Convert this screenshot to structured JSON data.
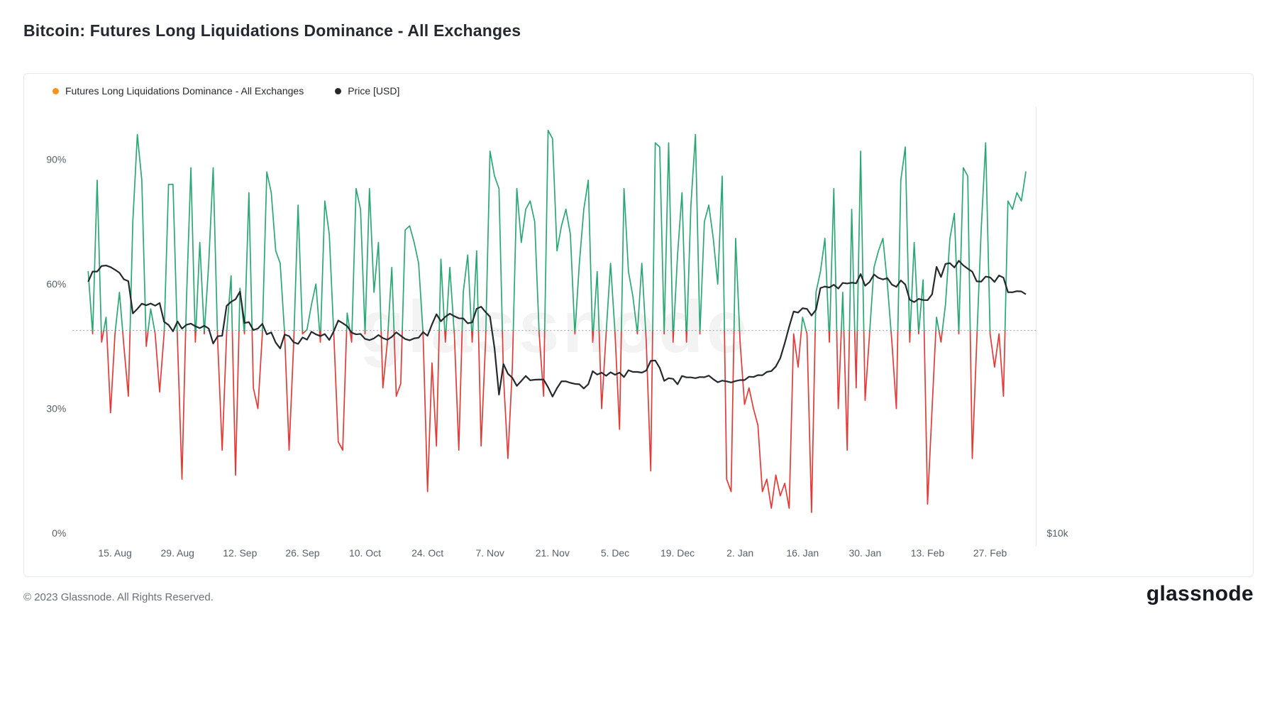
{
  "page": {
    "title": "Bitcoin: Futures Long Liquidations Dominance - All Exchanges",
    "watermark": "glassnode",
    "footer_copyright": "© 2023 Glassnode. All Rights Reserved.",
    "brand_logo": "glassnode"
  },
  "legend": [
    {
      "label": "Futures Long Liquidations Dominance - All Exchanges",
      "color": "#f7931a"
    },
    {
      "label": "Price [USD]",
      "color": "#24292e"
    }
  ],
  "chart_data": {
    "type": "line",
    "title": "Bitcoin: Futures Long Liquidations Dominance - All Exchanges",
    "x_tick_labels": [
      "15. Aug",
      "29. Aug",
      "12. Sep",
      "26. Sep",
      "10. Oct",
      "24. Oct",
      "7. Nov",
      "21. Nov",
      "5. Dec",
      "19. Dec",
      "2. Jan",
      "16. Jan",
      "30. Jan",
      "13. Feb",
      "27. Feb"
    ],
    "x_tick_indices": [
      6,
      20,
      34,
      48,
      62,
      76,
      90,
      104,
      118,
      132,
      146,
      160,
      174,
      188,
      202
    ],
    "y_axis": {
      "ticks": [
        "0%",
        "30%",
        "60%",
        "90%"
      ],
      "tick_values": [
        0,
        30,
        60,
        90
      ],
      "max_percent": 100,
      "grid": false
    },
    "right_axis": {
      "tick_label": "$10k",
      "scale": "log",
      "min": 10000,
      "max_at_top": 40000
    },
    "threshold_percent": 48.8,
    "colors": {
      "above_threshold": "#2aa874",
      "below_threshold": "#e53935",
      "price": "#24292e",
      "threshold": "#9aa0a6",
      "legend_dominance_dot": "#f7931a",
      "axis_text": "#57606a",
      "plot_border": "#e1e4e8"
    },
    "series": [
      {
        "name": "Futures Long Liquidations Dominance - All Exchanges",
        "unit": "%",
        "values": [
          63,
          48,
          85,
          46,
          52,
          29,
          48,
          58,
          45,
          33,
          75,
          96,
          85,
          45,
          54,
          48,
          34,
          48,
          84,
          84,
          46,
          13,
          56,
          88,
          46,
          70,
          48,
          65,
          88,
          46,
          20,
          48,
          62,
          14,
          59,
          48,
          82,
          35,
          30,
          48,
          87,
          82,
          68,
          65,
          48,
          20,
          45,
          79,
          48,
          49,
          55,
          60,
          46,
          80,
          72,
          48,
          22,
          20,
          53,
          46,
          83,
          78,
          48,
          83,
          58,
          70,
          35,
          46,
          64,
          33,
          36,
          73,
          74,
          70,
          65,
          48,
          10,
          41,
          21,
          66,
          46,
          64,
          48,
          20,
          58,
          67,
          46,
          68,
          21,
          46,
          92,
          86,
          83,
          38,
          18,
          40,
          83,
          70,
          78,
          80,
          75,
          48,
          33,
          97,
          95,
          68,
          74,
          78,
          72,
          48,
          65,
          78,
          85,
          46,
          63,
          30,
          48,
          65,
          48,
          25,
          83,
          63,
          57,
          48,
          65,
          46,
          15,
          94,
          93,
          48,
          94,
          46,
          67,
          82,
          46,
          79,
          96,
          48,
          75,
          79,
          71,
          60,
          86,
          13,
          10,
          71,
          46,
          31,
          35,
          30,
          26,
          10,
          13,
          6,
          14,
          9,
          12,
          6,
          48,
          40,
          52,
          48,
          5,
          58,
          63,
          71,
          46,
          83,
          30,
          58,
          20,
          78,
          35,
          92,
          32,
          48,
          64,
          68,
          71,
          60,
          46,
          30,
          85,
          93,
          46,
          70,
          48,
          61,
          7,
          30,
          52,
          46,
          55,
          71,
          77,
          48,
          88,
          86,
          18,
          46,
          73,
          94,
          48,
          40,
          48,
          33,
          80,
          78,
          82,
          80,
          87
        ]
      },
      {
        "name": "Price [USD]",
        "unit": "USD",
        "values": [
          23150,
          23950,
          23950,
          24400,
          24440,
          24310,
          24100,
          23850,
          23340,
          23190,
          20830,
          21140,
          21520,
          21400,
          21530,
          21370,
          21560,
          20250,
          20040,
          19620,
          20280,
          19790,
          20050,
          20130,
          19950,
          19830,
          19990,
          19800,
          18840,
          19300,
          19330,
          21360,
          21650,
          21830,
          22400,
          20170,
          20230,
          19700,
          19800,
          20110,
          19420,
          19550,
          18890,
          18530,
          19410,
          19300,
          18920,
          18810,
          19220,
          19080,
          19590,
          19420,
          19310,
          19440,
          19060,
          19630,
          20340,
          20160,
          19960,
          19530,
          19420,
          19450,
          19130,
          19050,
          19160,
          19380,
          19180,
          19070,
          19260,
          19550,
          19330,
          19120,
          19040,
          19160,
          19200,
          19570,
          19330,
          20080,
          20770,
          20290,
          20600,
          20810,
          20630,
          20490,
          20480,
          20150,
          20210,
          21150,
          21300,
          20920,
          20600,
          18540,
          15880,
          17590,
          17030,
          16800,
          16350,
          16620,
          16900,
          16660,
          16690,
          16700,
          16700,
          16280,
          15780,
          16230,
          16600,
          16600,
          16520,
          16460,
          16440,
          16210,
          16440,
          17170,
          16980,
          17090,
          16910,
          17110,
          16970,
          17090,
          16840,
          17230,
          17130,
          17130,
          17090,
          17210,
          17780,
          17800,
          17360,
          16630,
          16780,
          16740,
          16440,
          16900,
          16820,
          16820,
          16780,
          16840,
          16830,
          16920,
          16720,
          16550,
          16640,
          16600,
          16540,
          16620,
          16670,
          16670,
          16860,
          16840,
          16950,
          16940,
          17130,
          17180,
          17440,
          17940,
          18850,
          19930,
          20960,
          20880,
          21190,
          21140,
          20680,
          21080,
          22670,
          22780,
          22710,
          22920,
          22630,
          23060,
          23010,
          23080,
          23030,
          23750,
          22840,
          23130,
          23720,
          23450,
          23330,
          23430,
          22930,
          22760,
          23250,
          22940,
          21800,
          21630,
          21860,
          21780,
          21770,
          22200,
          24330,
          23520,
          24570,
          24630,
          24280,
          24830,
          24450,
          24180,
          23940,
          23180,
          23160,
          23550,
          23490,
          23140,
          23640,
          23470,
          22360,
          22350,
          22430,
          22410,
          22200
        ]
      }
    ]
  }
}
